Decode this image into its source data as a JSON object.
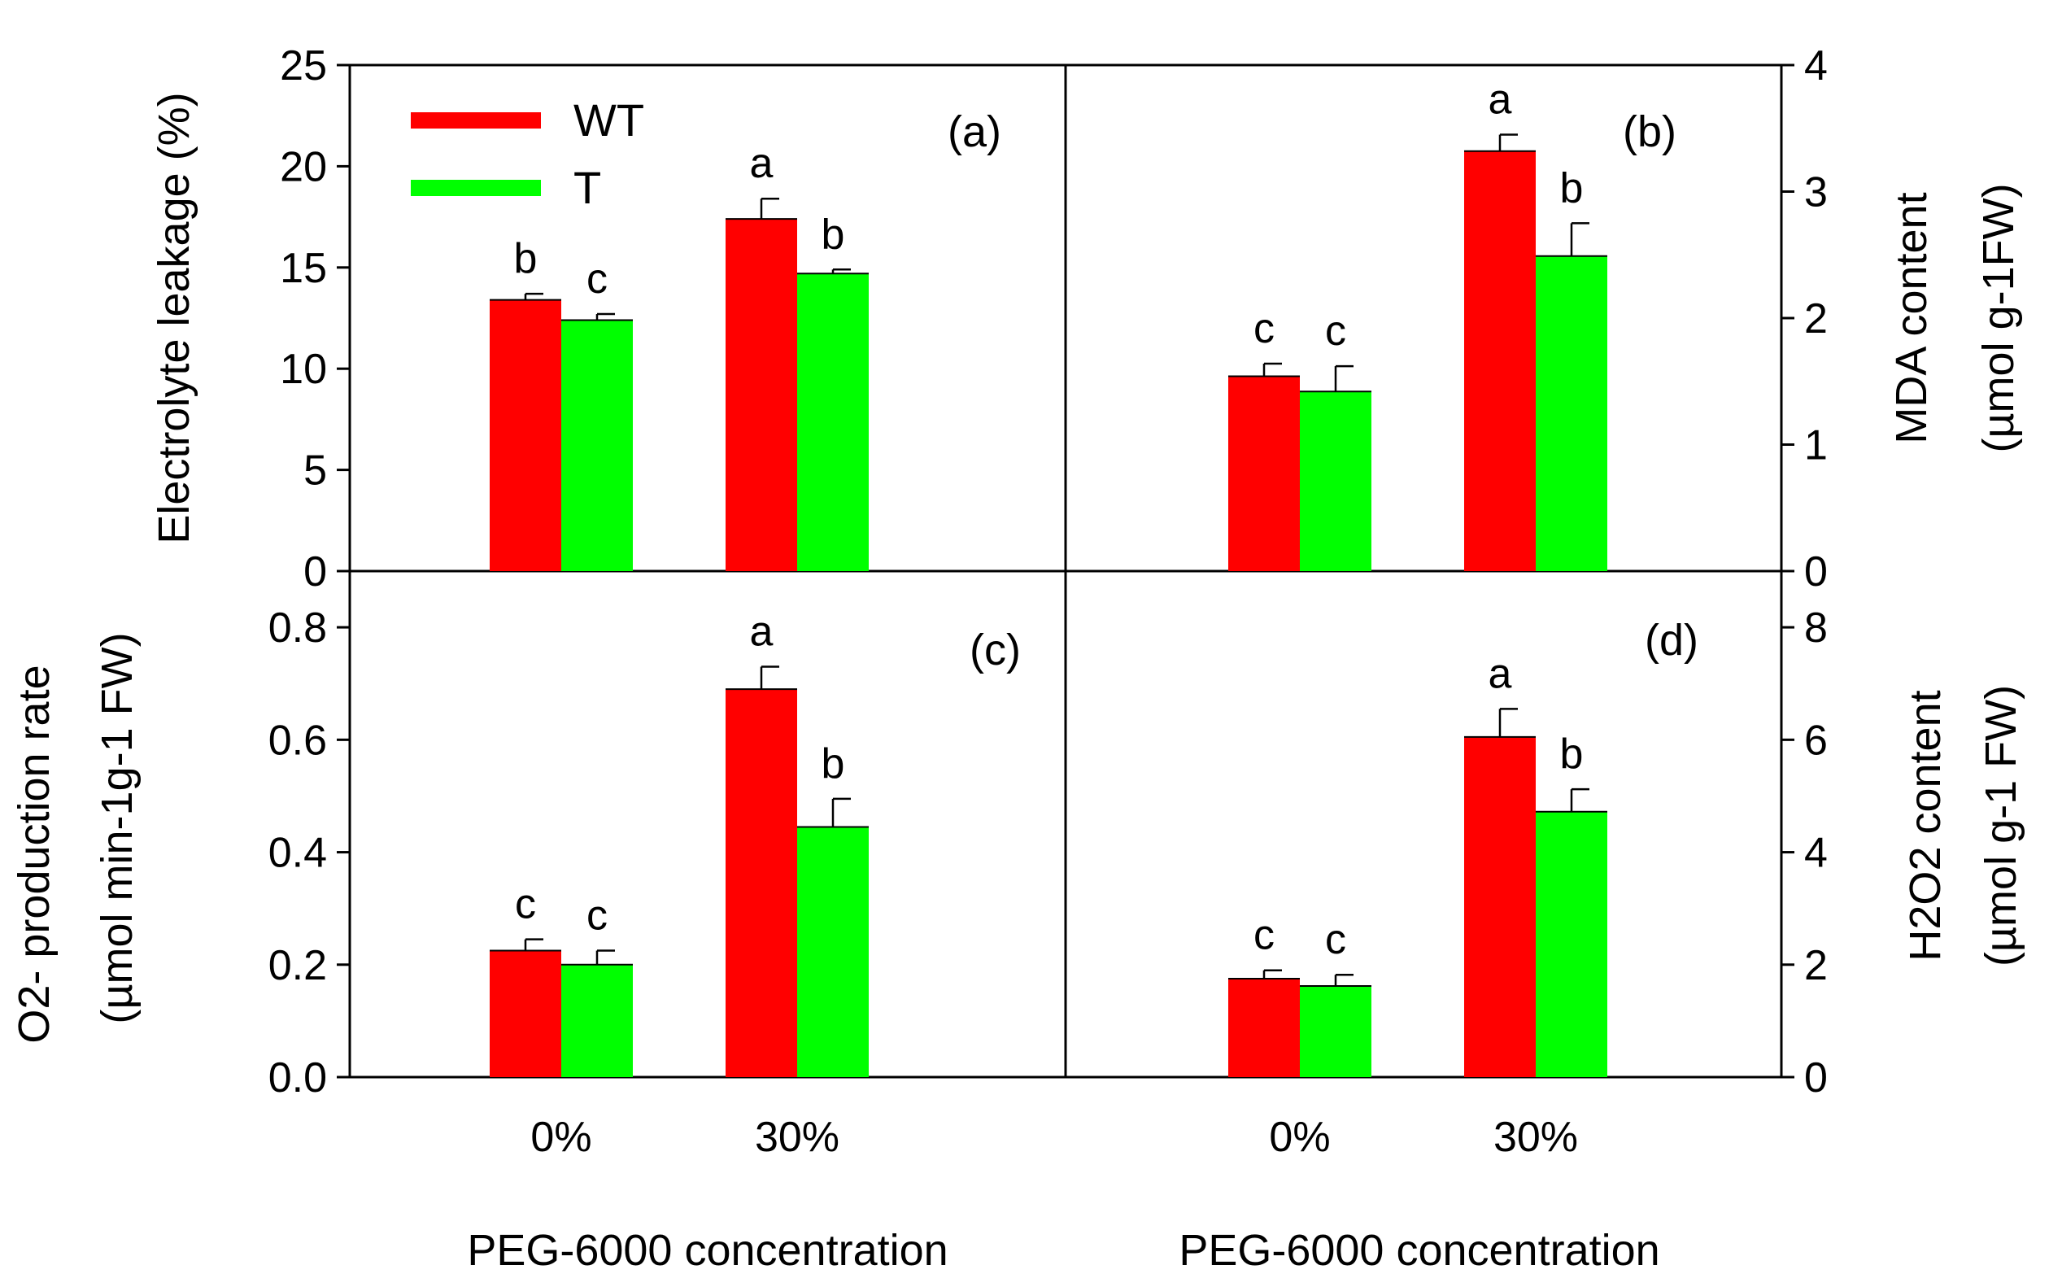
{
  "series_colors": {
    "WT": "#ff0000",
    "T": "#00ff00"
  },
  "legend": [
    {
      "name": "WT",
      "color": "#ff0000"
    },
    {
      "name": "T",
      "color": "#00ff00"
    }
  ],
  "x_tick_labels": [
    "0%",
    "30%"
  ],
  "x_axis_title": "PEG-6000 concentration",
  "chart_data": [
    {
      "panel": "(a)",
      "type": "bar",
      "categories": [
        "0%",
        "30%"
      ],
      "ylabel": "Electrolyte leakage (%)",
      "ylim": [
        0,
        25
      ],
      "yticks": [
        0,
        5,
        10,
        15,
        20,
        25
      ],
      "ytick_labels": [
        "0",
        "5",
        "10",
        "15",
        "20",
        "25"
      ],
      "series": [
        {
          "name": "WT",
          "values": [
            13.4,
            17.4
          ],
          "errors": [
            0.3,
            1.0
          ],
          "letters": [
            "b",
            "a"
          ]
        },
        {
          "name": "T",
          "values": [
            12.4,
            14.7
          ],
          "errors": [
            0.3,
            0.2
          ],
          "letters": [
            "c",
            "b"
          ]
        }
      ]
    },
    {
      "panel": "(b)",
      "type": "bar",
      "categories": [
        "0%",
        "30%"
      ],
      "ylabel": "MDA content",
      "ylabel_unit": "(µmol g-1FW)",
      "ylim": [
        0,
        4
      ],
      "yticks": [
        0,
        1,
        2,
        3,
        4
      ],
      "ytick_labels": [
        "0",
        "1",
        "2",
        "3",
        "4"
      ],
      "series": [
        {
          "name": "WT",
          "values": [
            1.54,
            3.32
          ],
          "errors": [
            0.1,
            0.13
          ],
          "letters": [
            "c",
            "a"
          ]
        },
        {
          "name": "T",
          "values": [
            1.42,
            2.49
          ],
          "errors": [
            0.2,
            0.26
          ],
          "letters": [
            "c",
            "b"
          ]
        }
      ]
    },
    {
      "panel": "(c)",
      "type": "bar",
      "categories": [
        "0%",
        "30%"
      ],
      "ylabel": "O2- production rate",
      "ylabel_unit": "(µmol min-1g-1 FW)",
      "ylim": [
        0,
        0.9
      ],
      "yticks": [
        0,
        0.2,
        0.4,
        0.6,
        0.8
      ],
      "ytick_labels": [
        "0.0",
        "0.2",
        "0.4",
        "0.6",
        "0.8"
      ],
      "series": [
        {
          "name": "WT",
          "values": [
            0.225,
            0.69
          ],
          "errors": [
            0.02,
            0.04
          ],
          "letters": [
            "c",
            "a"
          ]
        },
        {
          "name": "T",
          "values": [
            0.2,
            0.445
          ],
          "errors": [
            0.025,
            0.05
          ],
          "letters": [
            "c",
            "b"
          ]
        }
      ]
    },
    {
      "panel": "(d)",
      "type": "bar",
      "categories": [
        "0%",
        "30%"
      ],
      "ylabel": "H2O2 content",
      "ylabel_unit": "(µmol g-1 FW)",
      "ylim": [
        0,
        9
      ],
      "yticks": [
        0,
        2,
        4,
        6,
        8
      ],
      "ytick_labels": [
        "0",
        "2",
        "4",
        "6",
        "8"
      ],
      "series": [
        {
          "name": "WT",
          "values": [
            1.75,
            6.05
          ],
          "errors": [
            0.15,
            0.5
          ],
          "letters": [
            "c",
            "a"
          ]
        },
        {
          "name": "T",
          "values": [
            1.62,
            4.72
          ],
          "errors": [
            0.2,
            0.4
          ],
          "letters": [
            "c",
            "b"
          ]
        }
      ]
    }
  ]
}
